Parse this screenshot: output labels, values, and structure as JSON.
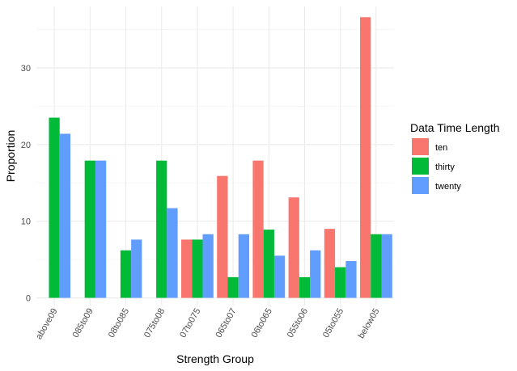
{
  "chart_data": {
    "type": "bar",
    "title": "",
    "xlabel": "Strength Group",
    "ylabel": "Proportion",
    "ylim": [
      -1,
      38
    ],
    "yticks": [
      0,
      10,
      20,
      30
    ],
    "grid": true,
    "legend_title": "Data Time Length",
    "legend_position": "right",
    "categories": [
      "above09",
      "085to09",
      "08to085",
      "075to08",
      "07to075",
      "065to07",
      "06to065",
      "055to06",
      "05to055",
      "below05"
    ],
    "series": [
      {
        "name": "ten",
        "color": "#F8766D",
        "values": [
          null,
          null,
          null,
          null,
          7.6,
          15.9,
          17.9,
          13.1,
          9.0,
          36.6
        ]
      },
      {
        "name": "thirty",
        "color": "#00BA38",
        "values": [
          23.5,
          17.9,
          6.2,
          17.9,
          7.6,
          2.7,
          8.9,
          2.7,
          4.0,
          8.3
        ]
      },
      {
        "name": "twenty",
        "color": "#619CFF",
        "values": [
          21.4,
          17.9,
          7.6,
          11.7,
          8.3,
          8.3,
          5.5,
          6.2,
          4.8,
          8.3
        ]
      }
    ]
  }
}
